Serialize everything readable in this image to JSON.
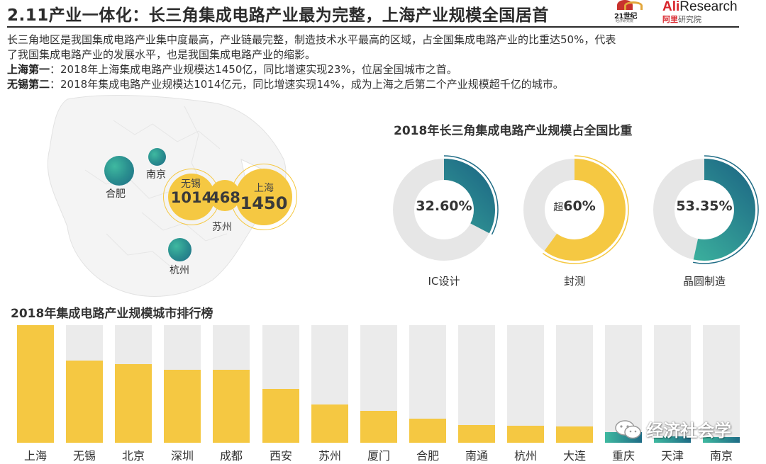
{
  "header": {
    "title": "2.11产业一体化：长三角集成电路产业最为完整，上海产业规模全国居首"
  },
  "logos": {
    "logo21_text": "21世纪",
    "logo21_sub": "经济研究院",
    "ali_prefix": "Ali",
    "ali_suffix": "Research",
    "ali_cn_red": "阿里",
    "ali_cn_rest": "研究院"
  },
  "intro": {
    "line1": "长三角地区是我国集成电路产业集中度最高，产业链最完整，制造技术水平最高的区域，占全国集成电路产业的比重达50%，代表",
    "line2": "了我国集成电路产业的发展水平，也是我国集成电路产业的缩影。",
    "line3_label": "上海第一",
    "line3_text": "：2018年上海集成电路产业规模达1450亿，同比增速实现23%，位居全国城市之首。",
    "line4_label": "无锡第二",
    "line4_text": "：2018年集成电路产业规模达1014亿元，同比增速实现14%，成为上海之后第二个产业规模超千亿的城市。"
  },
  "map": {
    "cities": {
      "hefei": "合肥",
      "nanjing": "南京",
      "hangzhou": "杭州",
      "suzhou": "苏州",
      "wuxi": "无锡",
      "shanghai": "上海"
    },
    "values": {
      "wuxi": "1014",
      "suzhou": "468",
      "shanghai": "1450"
    }
  },
  "donut_section_title": "2018年长三角集成电路产业规模占全国比重",
  "bar_section_title": "2018年集成电路产业规模城市排行榜",
  "watermark": "经济社会学",
  "colors": {
    "yellow": "#f5c842",
    "teal_start": "#3fb9a0",
    "teal_end": "#1f6c86",
    "track": "#e6e6e6",
    "bar_bg": "#ebebeb"
  },
  "chart_data": [
    {
      "type": "pie",
      "title": "2018年长三角集成电路产业规模占全国比重",
      "items": [
        {
          "label": "IC设计",
          "value": 32.6,
          "display": "32.60%",
          "prefix": "",
          "color": "teal"
        },
        {
          "label": "封测",
          "value": 60,
          "display": "60%",
          "prefix": "超",
          "color": "yellow"
        },
        {
          "label": "晶圆制造",
          "value": 53.35,
          "display": "53.35%",
          "prefix": "",
          "color": "teal"
        }
      ]
    },
    {
      "type": "bar",
      "title": "2018年集成电路产业规模城市排行榜",
      "categories": [
        "上海",
        "无锡",
        "北京",
        "深圳",
        "成都",
        "西安",
        "苏州",
        "厦门",
        "合肥",
        "南通",
        "杭州",
        "大连",
        "重庆",
        "天津",
        "南京"
      ],
      "values": [
        1450,
        1014,
        970,
        900,
        900,
        665,
        468,
        395,
        300,
        215,
        210,
        200,
        135,
        75,
        70
      ],
      "colors": [
        "yellow",
        "yellow",
        "yellow",
        "yellow",
        "yellow",
        "yellow",
        "yellow",
        "yellow",
        "yellow",
        "yellow",
        "yellow",
        "yellow",
        "teal",
        "teal",
        "teal"
      ],
      "ylim": [
        0,
        1450
      ],
      "xlabel": "",
      "ylabel": ""
    }
  ]
}
